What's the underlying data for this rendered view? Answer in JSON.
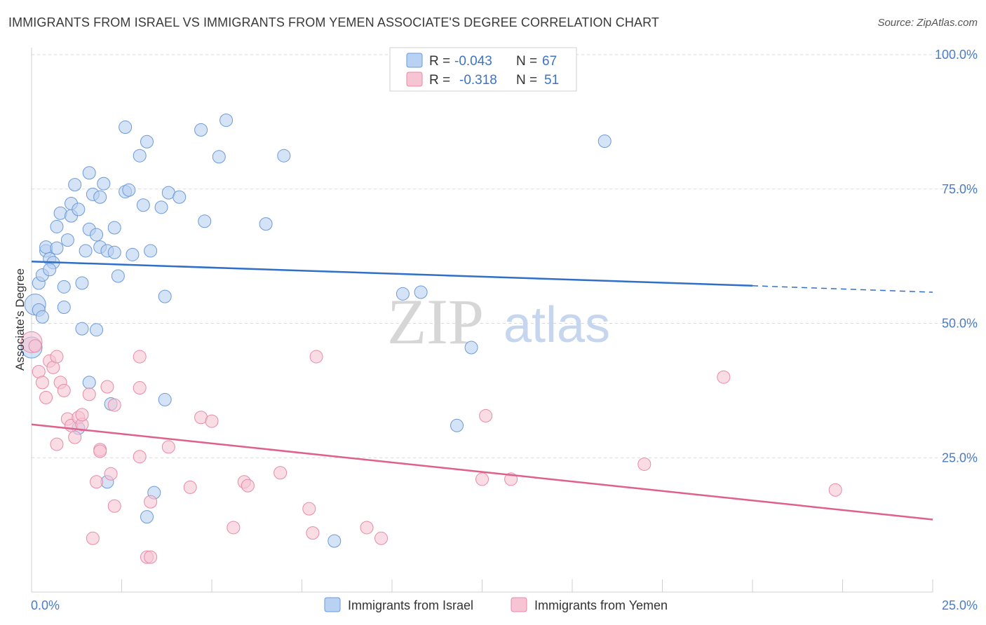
{
  "title": "IMMIGRANTS FROM ISRAEL VS IMMIGRANTS FROM YEMEN ASSOCIATE'S DEGREE CORRELATION CHART",
  "source": "Source: ZipAtlas.com",
  "watermark": {
    "zip": "ZIP",
    "atlas": "atlas"
  },
  "colors": {
    "israel_fill": "#b9d1f2",
    "israel_stroke": "#6c9ad8",
    "israel_line": "#2f6fc8",
    "yemen_fill": "#f7c4d3",
    "yemen_stroke": "#e88aa8",
    "yemen_line": "#e0608c",
    "grid": "#d9d9d9",
    "axis_text": "#4a7cc7"
  },
  "legend": {
    "rows": [
      {
        "r_label": "R =",
        "r_value": "-0.043",
        "n_label": "N =",
        "n_value": "67"
      },
      {
        "r_label": "R =",
        "r_value": "-0.318",
        "n_label": "N =",
        "n_value": "51"
      }
    ]
  },
  "chart_data": {
    "type": "scatter",
    "xlabel": "",
    "ylabel": "Associate's Degree",
    "xlim": [
      0,
      25
    ],
    "ylim": [
      0,
      100
    ],
    "x_tick_labels": [
      "0.0%",
      "25.0%"
    ],
    "y_tick_labels": [
      "25.0%",
      "50.0%",
      "75.0%",
      "100.0%"
    ],
    "y_ticks": [
      25,
      50,
      75,
      100
    ],
    "legend_position": "top-center",
    "series": [
      {
        "name": "Immigrants from Israel",
        "trend": {
          "x0": 0,
          "y0": 61.5,
          "x1": 20,
          "y1": 57.0,
          "x_dash_end": 25,
          "y_dash_end": 55.8
        },
        "points": [
          [
            0.1,
            53.5
          ],
          [
            0.2,
            52.5
          ],
          [
            0.3,
            51.2
          ],
          [
            0.2,
            57.5
          ],
          [
            0.3,
            59.0
          ],
          [
            0.4,
            63.5
          ],
          [
            0.4,
            64.2
          ],
          [
            0.5,
            62.0
          ],
          [
            0.6,
            61.3
          ],
          [
            0.5,
            60.0
          ],
          [
            0.7,
            64.0
          ],
          [
            0.7,
            68.0
          ],
          [
            0.8,
            70.5
          ],
          [
            0.9,
            56.8
          ],
          [
            0.9,
            53.0
          ],
          [
            1.0,
            65.5
          ],
          [
            1.1,
            72.3
          ],
          [
            1.1,
            70.0
          ],
          [
            1.2,
            75.8
          ],
          [
            1.3,
            71.2
          ],
          [
            1.4,
            57.5
          ],
          [
            1.4,
            49.0
          ],
          [
            1.5,
            63.5
          ],
          [
            1.6,
            67.5
          ],
          [
            1.6,
            78.0
          ],
          [
            1.7,
            74.0
          ],
          [
            1.8,
            66.5
          ],
          [
            1.9,
            73.5
          ],
          [
            1.9,
            64.2
          ],
          [
            2.0,
            76.0
          ],
          [
            2.1,
            63.5
          ],
          [
            2.3,
            67.8
          ],
          [
            2.3,
            63.2
          ],
          [
            2.4,
            58.8
          ],
          [
            2.6,
            86.5
          ],
          [
            2.6,
            74.5
          ],
          [
            2.7,
            74.8
          ],
          [
            2.8,
            62.8
          ],
          [
            3.0,
            81.2
          ],
          [
            3.1,
            72.0
          ],
          [
            3.2,
            83.8
          ],
          [
            3.3,
            63.5
          ],
          [
            3.6,
            71.6
          ],
          [
            3.7,
            55.0
          ],
          [
            3.8,
            74.3
          ],
          [
            4.1,
            73.5
          ],
          [
            4.7,
            86.0
          ],
          [
            4.8,
            69.0
          ],
          [
            5.2,
            81.0
          ],
          [
            5.4,
            87.8
          ],
          [
            6.5,
            68.5
          ],
          [
            7.0,
            81.2
          ],
          [
            10.3,
            55.5
          ],
          [
            10.8,
            55.8
          ],
          [
            12.2,
            45.5
          ],
          [
            15.9,
            83.9
          ],
          [
            1.6,
            39.0
          ],
          [
            2.2,
            35.0
          ],
          [
            3.7,
            35.8
          ],
          [
            1.3,
            30.5
          ],
          [
            2.1,
            20.5
          ],
          [
            3.4,
            18.5
          ],
          [
            3.2,
            14.0
          ],
          [
            8.4,
            9.5
          ],
          [
            11.8,
            31.0
          ],
          [
            0.0,
            45.5
          ],
          [
            1.8,
            48.8
          ]
        ]
      },
      {
        "name": "Immigrants from Yemen",
        "trend": {
          "x0": 0,
          "y0": 31.2,
          "x1": 25,
          "y1": 13.5
        },
        "points": [
          [
            0.0,
            46.5
          ],
          [
            0.1,
            45.8
          ],
          [
            0.2,
            41.0
          ],
          [
            0.3,
            39.0
          ],
          [
            0.4,
            36.2
          ],
          [
            0.5,
            43.0
          ],
          [
            0.6,
            41.8
          ],
          [
            0.7,
            43.8
          ],
          [
            0.7,
            27.5
          ],
          [
            0.8,
            39.0
          ],
          [
            0.9,
            37.5
          ],
          [
            1.0,
            32.2
          ],
          [
            1.1,
            31.0
          ],
          [
            1.2,
            28.8
          ],
          [
            1.3,
            32.5
          ],
          [
            1.4,
            31.2
          ],
          [
            1.4,
            33.0
          ],
          [
            1.6,
            36.8
          ],
          [
            1.7,
            10.0
          ],
          [
            1.8,
            20.5
          ],
          [
            1.9,
            26.5
          ],
          [
            1.9,
            26.2
          ],
          [
            2.1,
            38.2
          ],
          [
            2.2,
            22.0
          ],
          [
            2.3,
            34.8
          ],
          [
            2.3,
            16.0
          ],
          [
            3.0,
            38.0
          ],
          [
            3.0,
            25.2
          ],
          [
            3.0,
            43.8
          ],
          [
            3.2,
            6.5
          ],
          [
            3.3,
            6.5
          ],
          [
            3.3,
            16.8
          ],
          [
            3.8,
            27.0
          ],
          [
            4.4,
            19.5
          ],
          [
            4.7,
            32.5
          ],
          [
            5.0,
            31.8
          ],
          [
            5.6,
            12.0
          ],
          [
            5.9,
            20.5
          ],
          [
            6.0,
            19.8
          ],
          [
            6.9,
            22.2
          ],
          [
            7.7,
            15.5
          ],
          [
            7.8,
            11.0
          ],
          [
            7.9,
            43.8
          ],
          [
            9.3,
            12.0
          ],
          [
            9.7,
            10.0
          ],
          [
            12.5,
            21.0
          ],
          [
            12.6,
            32.8
          ],
          [
            13.3,
            21.0
          ],
          [
            17.0,
            23.8
          ],
          [
            19.2,
            40.0
          ],
          [
            22.3,
            19.0
          ]
        ]
      }
    ]
  },
  "bottom_legend": [
    {
      "label": "Immigrants from Israel"
    },
    {
      "label": "Immigrants from Yemen"
    }
  ]
}
